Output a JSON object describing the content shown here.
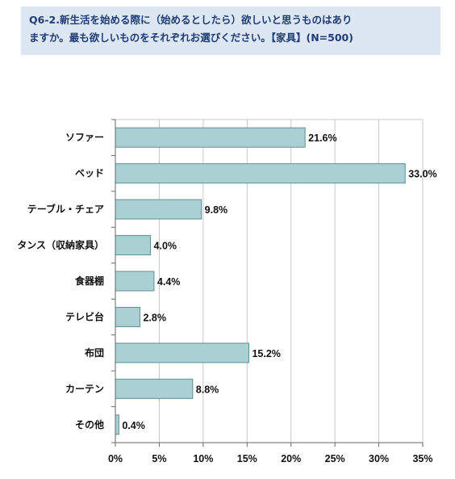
{
  "title": {
    "line1": "Q6-2.新生活を始める際に（始めるとしたら）欲しいと思うものはあり",
    "line2": "ますか。最も欲しいものをそれぞれお選びください。【家具】(N=500)"
  },
  "chart_data": {
    "type": "bar",
    "orientation": "horizontal",
    "categories": [
      "ソファー",
      "ベッド",
      "テーブル・チェア",
      "タンス（収納家具）",
      "食器棚",
      "テレビ台",
      "布団",
      "カーテン",
      "その他"
    ],
    "values": [
      21.6,
      33.0,
      9.8,
      4.0,
      4.4,
      2.8,
      15.2,
      8.8,
      0.4
    ],
    "value_labels": [
      "21.6%",
      "33.0%",
      "9.8%",
      "4.0%",
      "4.4%",
      "2.8%",
      "15.2%",
      "8.8%",
      "0.4%"
    ],
    "xlim": [
      0,
      35
    ],
    "x_ticks": [
      0,
      5,
      10,
      15,
      20,
      25,
      30,
      35
    ],
    "x_tick_labels": [
      "0%",
      "5%",
      "10%",
      "15%",
      "20%",
      "25%",
      "30%",
      "35%"
    ],
    "grid": true,
    "legend": "none",
    "colors": {
      "bar_fill": "#a9d0d3",
      "bar_edge": "#5f8f96",
      "grid": "#c8c8c8",
      "axis": "#666666"
    }
  }
}
